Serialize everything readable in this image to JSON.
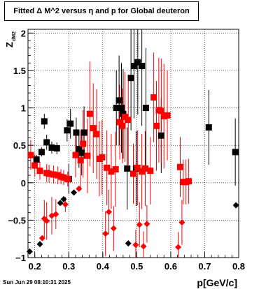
{
  "chart_data": {
    "type": "scatter",
    "title": "Fitted Δ M^2 versus η and p for Global deuteron",
    "xlabel": "p[GeV/c]",
    "ylabel": "Z",
    "ylabel_sub": "dM2",
    "xlim": [
      0.18,
      0.8
    ],
    "ylim": [
      -1.0,
      2.05
    ],
    "x_ticks": [
      0.2,
      0.3,
      0.4,
      0.5,
      0.6,
      0.7,
      0.8
    ],
    "x_tick_labels": [
      "0.2",
      "0.3",
      "0.4",
      "0.5",
      "0.6",
      "0.7",
      "0.8"
    ],
    "y_ticks": [
      -1,
      -0.5,
      0,
      0.5,
      1,
      1.5,
      2
    ],
    "y_tick_labels": [
      "−1",
      "−0.5",
      "0",
      "0.5",
      "1",
      "1.5",
      "2"
    ],
    "grid": true,
    "series": [
      {
        "marker": "square",
        "color": "#000000",
        "points": [
          {
            "x": 0.185,
            "y": -0.92,
            "err": 0.02,
            "m": "diamond"
          },
          {
            "x": 0.215,
            "y": -0.82,
            "err": 0.02,
            "m": "diamond"
          },
          {
            "x": 0.205,
            "y": 0.31,
            "err": 0.06
          },
          {
            "x": 0.22,
            "y": 0.41,
            "err": 0.06
          },
          {
            "x": 0.228,
            "y": 0.82,
            "err": 0.1
          },
          {
            "x": 0.235,
            "y": 0.54,
            "err": 0.1
          },
          {
            "x": 0.25,
            "y": 0.47,
            "err": 0.08
          },
          {
            "x": 0.265,
            "y": 0.46,
            "err": 0.08
          },
          {
            "x": 0.275,
            "y": -0.27,
            "err": 0.03,
            "m": "diamond"
          },
          {
            "x": 0.285,
            "y": -0.22,
            "err": 0.03,
            "m": "diamond"
          },
          {
            "x": 0.295,
            "y": 0.7,
            "err": 0.15
          },
          {
            "x": 0.3,
            "y": 0.05,
            "err": 0.2
          },
          {
            "x": 0.305,
            "y": 0.79,
            "err": 0.2
          },
          {
            "x": 0.315,
            "y": -0.13,
            "err": 0.03,
            "m": "diamond"
          },
          {
            "x": 0.322,
            "y": 0.67,
            "err": 0.2
          },
          {
            "x": 0.33,
            "y": 0.45,
            "err": 0.25
          },
          {
            "x": 0.338,
            "y": 0.4,
            "err": 0.3
          },
          {
            "x": 0.345,
            "y": 0.67,
            "err": 0.35
          },
          {
            "x": 0.44,
            "y": 1.0,
            "err": 0.5
          },
          {
            "x": 0.448,
            "y": 1.1,
            "err": 0.6
          },
          {
            "x": 0.455,
            "y": 1.0,
            "err": 0.6
          },
          {
            "x": 0.46,
            "y": 0.92,
            "err": 0.6
          },
          {
            "x": 0.472,
            "y": 0.19,
            "err": 0.55
          },
          {
            "x": 0.475,
            "y": -0.81,
            "err": 0.03,
            "m": "diamond"
          },
          {
            "x": 0.483,
            "y": 1.4,
            "err": 0.7
          },
          {
            "x": 0.492,
            "y": 1.56,
            "err": 0.7
          },
          {
            "x": 0.498,
            "y": 0.19,
            "err": 0.5
          },
          {
            "x": 0.503,
            "y": 1.61,
            "err": 0.7
          },
          {
            "x": 0.515,
            "y": 1.56,
            "err": 0.8
          },
          {
            "x": 0.527,
            "y": 1.0,
            "err": 0.8
          },
          {
            "x": 0.572,
            "y": 0.63,
            "err": 0.5
          },
          {
            "x": 0.712,
            "y": 0.74,
            "err": 0.5
          },
          {
            "x": 0.79,
            "y": 0.41,
            "err": 0.45
          },
          {
            "x": 0.792,
            "y": -0.3,
            "err": 0.03,
            "m": "diamond"
          }
        ]
      },
      {
        "marker": "square",
        "color": "#ff0000",
        "points": [
          {
            "x": 0.188,
            "y": 0.37,
            "err": 0.2
          },
          {
            "x": 0.2,
            "y": 0.23,
            "err": 0.15
          },
          {
            "x": 0.215,
            "y": 0.16,
            "err": 0.12
          },
          {
            "x": 0.222,
            "y": -0.74,
            "err": 0.03,
            "m": "diamond"
          },
          {
            "x": 0.228,
            "y": -0.48,
            "err": 0.25,
            "m": "diamond"
          },
          {
            "x": 0.235,
            "y": -0.51,
            "err": 0.25,
            "m": "diamond"
          },
          {
            "x": 0.235,
            "y": 0.13,
            "err": 0.12
          },
          {
            "x": 0.242,
            "y": 0.12,
            "err": 0.12
          },
          {
            "x": 0.25,
            "y": -0.44,
            "err": 0.25,
            "m": "diamond"
          },
          {
            "x": 0.255,
            "y": 0.11,
            "err": 0.12
          },
          {
            "x": 0.262,
            "y": -0.42,
            "err": 0.2,
            "m": "diamond"
          },
          {
            "x": 0.268,
            "y": 0.1,
            "err": 0.12
          },
          {
            "x": 0.277,
            "y": 0.08,
            "err": 0.1
          },
          {
            "x": 0.285,
            "y": 0.07,
            "err": 0.1
          },
          {
            "x": 0.29,
            "y": -0.29,
            "err": 0.1,
            "m": "diamond"
          },
          {
            "x": 0.297,
            "y": 0.05,
            "err": 0.1
          },
          {
            "x": 0.32,
            "y": 0.37,
            "err": 0.3
          },
          {
            "x": 0.33,
            "y": -0.08,
            "err": 0.03,
            "m": "diamond"
          },
          {
            "x": 0.335,
            "y": 0.3,
            "err": 0.4
          },
          {
            "x": 0.342,
            "y": 0.52,
            "err": 0.45
          },
          {
            "x": 0.355,
            "y": 0.36,
            "err": 0.5
          },
          {
            "x": 0.362,
            "y": 0.92,
            "err": 0.7
          },
          {
            "x": 0.372,
            "y": 0.73,
            "err": 0.6
          },
          {
            "x": 0.382,
            "y": 0.65,
            "err": 0.6
          },
          {
            "x": 0.39,
            "y": 0.32,
            "err": 0.5
          },
          {
            "x": 0.398,
            "y": 0.34,
            "err": 0.5
          },
          {
            "x": 0.408,
            "y": -0.68,
            "err": 0.3,
            "m": "diamond"
          },
          {
            "x": 0.412,
            "y": 0.2,
            "err": 0.5
          },
          {
            "x": 0.418,
            "y": -0.39,
            "err": 0.3,
            "m": "diamond"
          },
          {
            "x": 0.425,
            "y": 0.15,
            "err": 0.5
          },
          {
            "x": 0.432,
            "y": -0.61,
            "err": 0.3,
            "m": "diamond"
          },
          {
            "x": 0.438,
            "y": 0.18,
            "err": 0.5
          },
          {
            "x": 0.45,
            "y": 0.81,
            "err": 0.5
          },
          {
            "x": 0.458,
            "y": 0.76,
            "err": 0.5
          },
          {
            "x": 0.465,
            "y": 0.88,
            "err": 0.6
          },
          {
            "x": 0.475,
            "y": 0.84,
            "err": 0.6
          },
          {
            "x": 0.49,
            "y": 0.12,
            "err": 0.4
          },
          {
            "x": 0.497,
            "y": -0.83,
            "err": 0.2,
            "m": "diamond"
          },
          {
            "x": 0.502,
            "y": 0.2,
            "err": 0.5
          },
          {
            "x": 0.508,
            "y": -0.56,
            "err": 0.3,
            "m": "diamond"
          },
          {
            "x": 0.515,
            "y": 0.15,
            "err": 0.5
          },
          {
            "x": 0.52,
            "y": -0.85,
            "err": 0.2,
            "m": "diamond"
          },
          {
            "x": 0.525,
            "y": 0.19,
            "err": 0.5
          },
          {
            "x": 0.53,
            "y": -0.55,
            "err": 0.25,
            "m": "diamond"
          },
          {
            "x": 0.54,
            "y": 0.16,
            "err": 0.45
          },
          {
            "x": 0.55,
            "y": 1.14,
            "err": 0.6
          },
          {
            "x": 0.558,
            "y": 0.76,
            "err": 0.6
          },
          {
            "x": 0.565,
            "y": 0.97,
            "err": 0.7
          },
          {
            "x": 0.572,
            "y": 0.96,
            "err": 0.7
          },
          {
            "x": 0.58,
            "y": 0.89,
            "err": 0.7
          },
          {
            "x": 0.59,
            "y": 0.9,
            "err": 0.6
          },
          {
            "x": 0.622,
            "y": -0.86,
            "err": 0.2,
            "m": "diamond"
          },
          {
            "x": 0.628,
            "y": 0.21,
            "err": 0.4
          },
          {
            "x": 0.633,
            "y": -0.53,
            "err": 0.3,
            "m": "diamond"
          },
          {
            "x": 0.637,
            "y": 0.01,
            "err": 0.3
          },
          {
            "x": 0.645,
            "y": 0.01,
            "err": 0.3
          },
          {
            "x": 0.653,
            "y": 0.02,
            "err": 0.3
          }
        ]
      }
    ]
  },
  "footer": {
    "timestamp": "Sun Jun 29 08:10:31 2025"
  }
}
